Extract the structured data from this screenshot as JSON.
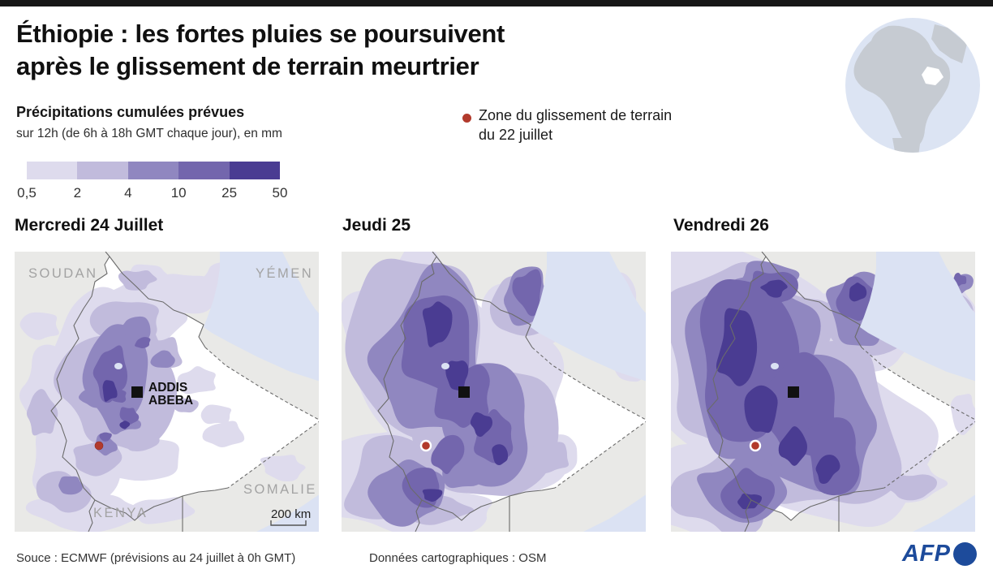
{
  "header": {
    "title_line1": "Éthiopie : les fortes pluies se poursuivent",
    "title_line2": "après le glissement de terrain meurtrier"
  },
  "legend": {
    "scale_title": "Précipitations cumulées prévues",
    "scale_subtitle": "sur 12h (de 6h à 18h GMT chaque jour), en mm",
    "scale_values": [
      "0,5",
      "2",
      "4",
      "10",
      "25",
      "50"
    ],
    "scale_colors": [
      "#dedbed",
      "#c1bbdc",
      "#9087c0",
      "#7366ad",
      "#4a3c92"
    ],
    "landslide_line1": "Zone du glissement de terrain",
    "landslide_line2": "du 22 juillet",
    "landslide_color": "#b23a2c",
    "landslide_marker": "red-dot",
    "city_marker": "black-square"
  },
  "maps": [
    {
      "day_label": "Mercredi 24 Juillet",
      "labels": {
        "country_nw": "SOUDAN",
        "country_ne": "YÉMEN",
        "country_se": "SOMALIE",
        "country_s": "KENYA",
        "city_line1": "ADDIS",
        "city_line2": "ABEBA",
        "scale_text": "200 km"
      }
    },
    {
      "day_label": "Jeudi 25"
    },
    {
      "day_label": "Vendredi 26"
    }
  ],
  "map_colors": {
    "land": "#e9e9e7",
    "water": "#dbe2f3",
    "ethiopia": "#ffffff",
    "border": "#6b6b6b",
    "country_label": "#a3a3a3"
  },
  "footer": {
    "source": "Souce : ECMWF (prévisions au 24 juillet à 0h GMT)",
    "map_credit": "Données cartographiques : OSM",
    "logo_text": "AFP",
    "logo_color": "#1d4b9b"
  }
}
